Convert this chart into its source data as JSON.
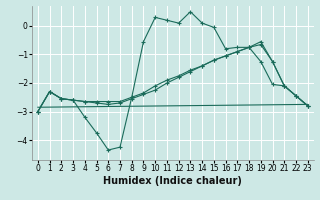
{
  "title": "",
  "xlabel": "Humidex (Indice chaleur)",
  "bg_color": "#cde8e5",
  "line_color": "#1a6b5a",
  "grid_color": "#ffffff",
  "xlim": [
    -0.5,
    23.5
  ],
  "ylim": [
    -4.7,
    0.7
  ],
  "yticks": [
    0,
    -1,
    -2,
    -3,
    -4
  ],
  "xticks": [
    0,
    1,
    2,
    3,
    4,
    5,
    6,
    7,
    8,
    9,
    10,
    11,
    12,
    13,
    14,
    15,
    16,
    17,
    18,
    19,
    20,
    21,
    22,
    23
  ],
  "line1_x": [
    0,
    1,
    2,
    3,
    4,
    5,
    6,
    7,
    8,
    9,
    10,
    11,
    12,
    13,
    14,
    15,
    16,
    17,
    18,
    19,
    20,
    21,
    22,
    23
  ],
  "line1_y": [
    -3.0,
    -2.3,
    -2.55,
    -2.6,
    -3.2,
    -3.75,
    -4.35,
    -4.25,
    -2.5,
    -0.55,
    0.3,
    0.2,
    0.1,
    0.5,
    0.1,
    -0.05,
    -0.8,
    -0.75,
    -0.75,
    -1.25,
    -2.05,
    -2.1,
    -2.45,
    -2.8
  ],
  "line2_x": [
    0,
    1,
    2,
    3,
    4,
    5,
    6,
    7,
    8,
    9,
    10,
    11,
    12,
    13,
    14,
    15,
    16,
    17,
    18,
    19,
    20,
    21,
    22,
    23
  ],
  "line2_y": [
    -3.0,
    -2.3,
    -2.55,
    -2.6,
    -2.65,
    -2.7,
    -2.75,
    -2.7,
    -2.55,
    -2.4,
    -2.25,
    -2.0,
    -1.8,
    -1.6,
    -1.4,
    -1.2,
    -1.05,
    -0.9,
    -0.75,
    -0.65,
    -1.25,
    -2.1,
    -2.45,
    -2.8
  ],
  "line3_x": [
    0,
    1,
    2,
    3,
    4,
    5,
    6,
    7,
    8,
    9,
    10,
    11,
    12,
    13,
    14,
    15,
    16,
    17,
    18,
    19,
    20,
    21,
    22,
    23
  ],
  "line3_y": [
    -3.0,
    -2.3,
    -2.55,
    -2.6,
    -2.65,
    -2.65,
    -2.65,
    -2.65,
    -2.5,
    -2.35,
    -2.1,
    -1.9,
    -1.75,
    -1.55,
    -1.4,
    -1.2,
    -1.05,
    -0.9,
    -0.75,
    -0.55,
    -1.25,
    -2.1,
    -2.45,
    -2.8
  ],
  "line4_x": [
    0,
    23
  ],
  "line4_y": [
    -2.85,
    -2.75
  ],
  "xlabel_fontsize": 7,
  "tick_fontsize": 5.5
}
